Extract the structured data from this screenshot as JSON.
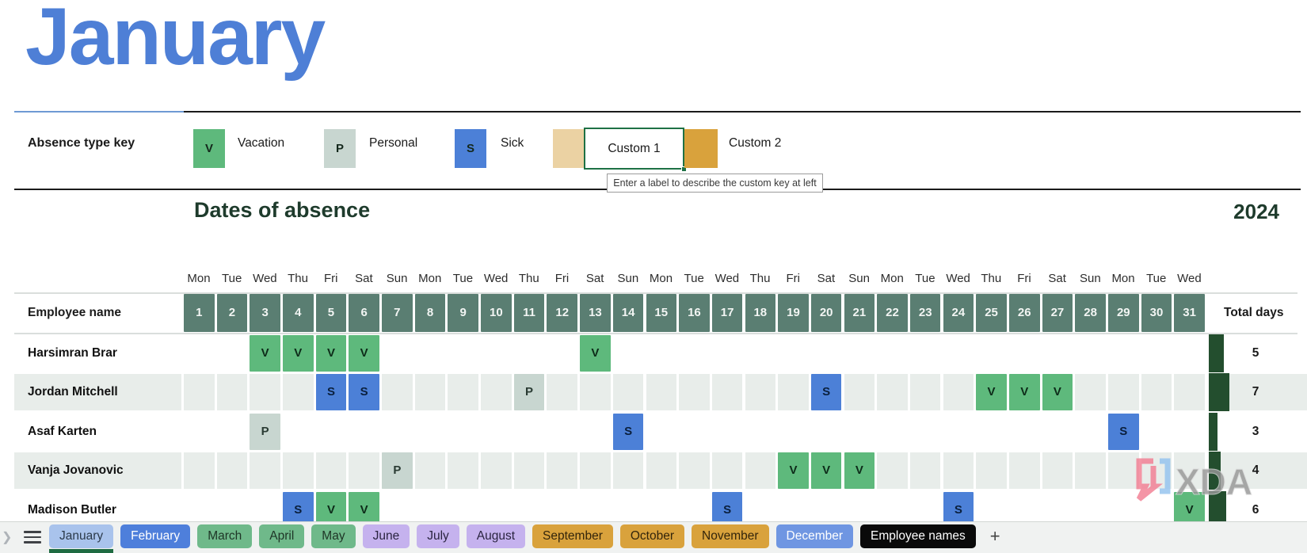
{
  "title": "January",
  "year": "2024",
  "section_title": "Dates of absence",
  "key": {
    "label": "Absence type key",
    "tooltip": "Enter a label to describe the custom key at left",
    "items": [
      {
        "code": "V",
        "label": "Vacation",
        "color": "#5EB97C"
      },
      {
        "code": "P",
        "label": "Personal",
        "color": "#C8D6D0"
      },
      {
        "code": "S",
        "label": "Sick",
        "color": "#4C80D7"
      },
      {
        "code": "",
        "label": "Custom 1",
        "color": "#EBD2A3",
        "state": "editing"
      },
      {
        "code": "",
        "label": "Custom 2",
        "color": "#D9A23C"
      }
    ]
  },
  "grid": {
    "employee_header": "Employee name",
    "total_header": "Total days",
    "weekdays": [
      "Mon",
      "Tue",
      "Wed",
      "Thu",
      "Fri",
      "Sat",
      "Sun",
      "Mon",
      "Tue",
      "Wed",
      "Thu",
      "Fri",
      "Sat",
      "Sun",
      "Mon",
      "Tue",
      "Wed",
      "Thu",
      "Fri",
      "Sat",
      "Sun",
      "Mon",
      "Tue",
      "Wed",
      "Thu",
      "Fri",
      "Sat",
      "Sun",
      "Mon",
      "Tue",
      "Wed"
    ],
    "days": [
      1,
      2,
      3,
      4,
      5,
      6,
      7,
      8,
      9,
      10,
      11,
      12,
      13,
      14,
      15,
      16,
      17,
      18,
      19,
      20,
      21,
      22,
      23,
      24,
      25,
      26,
      27,
      28,
      29,
      30,
      31
    ],
    "marker_colors": {
      "V": "#5EB97C",
      "P": "#C8D6D0",
      "S": "#4C80D7"
    },
    "marker_text_colors": {
      "V": "#0D2B19",
      "P": "#2A3B33",
      "S": "#0A1F3C"
    },
    "total_bar_color": "#234E2E",
    "rows": [
      {
        "name": "Harsimran Brar",
        "total": 5,
        "marks": {
          "3": "V",
          "4": "V",
          "5": "V",
          "6": "V",
          "13": "V"
        }
      },
      {
        "name": "Jordan Mitchell",
        "total": 7,
        "marks": {
          "5": "S",
          "6": "S",
          "11": "P",
          "20": "S",
          "25": "V",
          "26": "V",
          "27": "V"
        }
      },
      {
        "name": "Asaf Karten",
        "total": 3,
        "marks": {
          "3": "P",
          "14": "S",
          "29": "S"
        }
      },
      {
        "name": "Vanja Jovanovic",
        "total": 4,
        "marks": {
          "7": "P",
          "19": "V",
          "20": "V",
          "21": "V"
        }
      },
      {
        "name": "Madison Butler",
        "total": 6,
        "marks": {
          "4": "S",
          "5": "V",
          "6": "V",
          "17": "S",
          "24": "S",
          "31": "V"
        }
      }
    ]
  },
  "sheet_tabs": {
    "tabs": [
      {
        "label": "January",
        "bg": "#A9C3EC",
        "fg": "#2B3A4A",
        "active": true
      },
      {
        "label": "February",
        "bg": "#4E7FDB",
        "fg": "#FFFFFF",
        "active": false
      },
      {
        "label": "March",
        "bg": "#6FB98A",
        "fg": "#1E3526",
        "active": false
      },
      {
        "label": "April",
        "bg": "#6FB98A",
        "fg": "#1E3526",
        "active": false
      },
      {
        "label": "May",
        "bg": "#6FB98A",
        "fg": "#1E3526",
        "active": false
      },
      {
        "label": "June",
        "bg": "#C5B2EE",
        "fg": "#2A2440",
        "active": false
      },
      {
        "label": "July",
        "bg": "#C5B2EE",
        "fg": "#2A2440",
        "active": false
      },
      {
        "label": "August",
        "bg": "#C5B2EE",
        "fg": "#2A2440",
        "active": false
      },
      {
        "label": "September",
        "bg": "#D9A23C",
        "fg": "#33250B",
        "active": false
      },
      {
        "label": "October",
        "bg": "#D9A23C",
        "fg": "#33250B",
        "active": false
      },
      {
        "label": "November",
        "bg": "#D9A23C",
        "fg": "#33250B",
        "active": false
      },
      {
        "label": "December",
        "bg": "#6F96E2",
        "fg": "#FFFFFF",
        "active": false
      },
      {
        "label": "Employee names",
        "bg": "#0A0A0A",
        "fg": "#FFFFFF",
        "active": false
      }
    ],
    "add_tab_label": "+",
    "active_underline_color": "#1E6B41"
  },
  "watermark": "XDA"
}
